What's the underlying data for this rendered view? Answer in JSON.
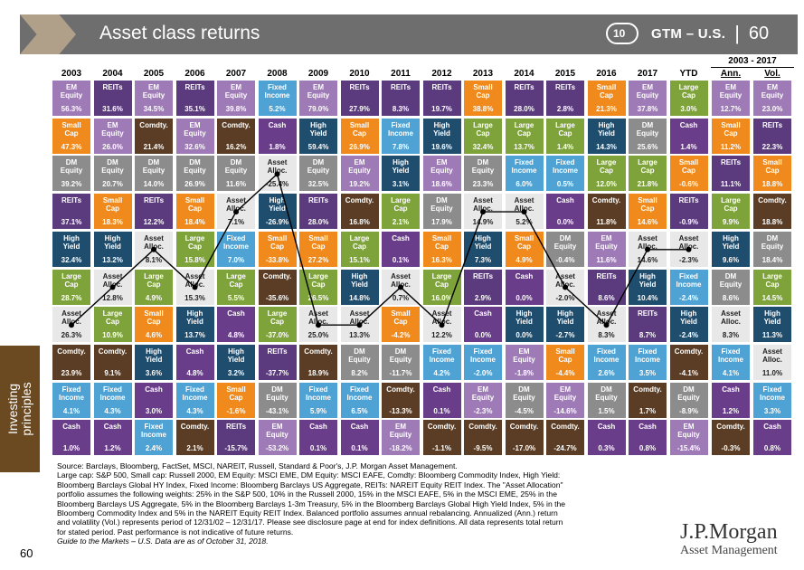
{
  "header": {
    "title": "Asset class returns",
    "audio_label": "10",
    "gtm_label": "GTM – U.S.",
    "separator": "|",
    "page_number": "60"
  },
  "period_label": "2003 - 2017",
  "years": [
    "2003",
    "2004",
    "2005",
    "2006",
    "2007",
    "2008",
    "2009",
    "2010",
    "2011",
    "2012",
    "2013",
    "2014",
    "2015",
    "2016",
    "2017",
    "YTD"
  ],
  "ann_label": "Ann.",
  "vol_label": "Vol.",
  "side_tab": "Investing\nprinciples",
  "colors": {
    "EM Equity": "#9e7ab6",
    "REITs": "#5b3b7e",
    "Small Cap": "#f08a1c",
    "Comdty.": "#5a3d24",
    "DM Equity": "#8c8c8c",
    "Fixed Income": "#4fa3d4",
    "Cash": "#6a3d8a",
    "High Yield": "#1f4d6e",
    "Large Cap": "#7fa33b",
    "Asset Alloc.": "#e8e8e8"
  },
  "grid": [
    [
      [
        "EM\nEquity",
        "56.3%"
      ],
      [
        "REITs",
        "31.6%"
      ],
      [
        "EM\nEquity",
        "34.5%"
      ],
      [
        "REITs",
        "35.1%"
      ],
      [
        "EM\nEquity",
        "39.8%"
      ],
      [
        "Fixed\nIncome",
        "5.2%"
      ],
      [
        "EM\nEquity",
        "79.0%"
      ],
      [
        "REITs",
        "27.9%"
      ],
      [
        "REITs",
        "8.3%"
      ],
      [
        "REITs",
        "19.7%"
      ],
      [
        "Small\nCap",
        "38.8%"
      ],
      [
        "REITs",
        "28.0%"
      ],
      [
        "REITs",
        "2.8%"
      ],
      [
        "Small\nCap",
        "21.3%"
      ],
      [
        "EM\nEquity",
        "37.8%"
      ],
      [
        "Large\nCap",
        "3.0%"
      ],
      [
        "EM\nEquity",
        "12.7%"
      ],
      [
        "EM\nEquity",
        "23.0%"
      ]
    ],
    [
      [
        "Small\nCap",
        "47.3%"
      ],
      [
        "EM\nEquity",
        "26.0%"
      ],
      [
        "Comdty.",
        "21.4%"
      ],
      [
        "EM\nEquity",
        "32.6%"
      ],
      [
        "Comdty.",
        "16.2%"
      ],
      [
        "Cash",
        "1.8%"
      ],
      [
        "High\nYield",
        "59.4%"
      ],
      [
        "Small\nCap",
        "26.9%"
      ],
      [
        "Fixed\nIncome",
        "7.8%"
      ],
      [
        "High\nYield",
        "19.6%"
      ],
      [
        "Large\nCap",
        "32.4%"
      ],
      [
        "Large\nCap",
        "13.7%"
      ],
      [
        "Large\nCap",
        "1.4%"
      ],
      [
        "High\nYield",
        "14.3%"
      ],
      [
        "DM\nEquity",
        "25.6%"
      ],
      [
        "Cash",
        "1.4%"
      ],
      [
        "Small\nCap",
        "11.2%"
      ],
      [
        "REITs",
        "22.3%"
      ]
    ],
    [
      [
        "DM\nEquity",
        "39.2%"
      ],
      [
        "DM\nEquity",
        "20.7%"
      ],
      [
        "DM\nEquity",
        "14.0%"
      ],
      [
        "DM\nEquity",
        "26.9%"
      ],
      [
        "DM\nEquity",
        "11.6%"
      ],
      [
        "Asset\nAlloc.",
        "-25.4%"
      ],
      [
        "DM\nEquity",
        "32.5%"
      ],
      [
        "EM\nEquity",
        "19.2%"
      ],
      [
        "High\nYield",
        "3.1%"
      ],
      [
        "EM\nEquity",
        "18.6%"
      ],
      [
        "DM\nEquity",
        "23.3%"
      ],
      [
        "Fixed\nIncome",
        "6.0%"
      ],
      [
        "Fixed\nIncome",
        "0.5%"
      ],
      [
        "Large\nCap",
        "12.0%"
      ],
      [
        "Large\nCap",
        "21.8%"
      ],
      [
        "Small\nCap",
        "-0.6%"
      ],
      [
        "REITs",
        "11.1%"
      ],
      [
        "Small\nCap",
        "18.8%"
      ]
    ],
    [
      [
        "REITs",
        "37.1%"
      ],
      [
        "Small\nCap",
        "18.3%"
      ],
      [
        "REITs",
        "12.2%"
      ],
      [
        "Small\nCap",
        "18.4%"
      ],
      [
        "Asset\nAlloc.",
        "7.1%"
      ],
      [
        "High\nYield",
        "-26.9%"
      ],
      [
        "REITs",
        "28.0%"
      ],
      [
        "Comdty.",
        "16.8%"
      ],
      [
        "Large\nCap",
        "2.1%"
      ],
      [
        "DM\nEquity",
        "17.9%"
      ],
      [
        "Asset\nAlloc.",
        "14.9%"
      ],
      [
        "Asset\nAlloc.",
        "5.2%"
      ],
      [
        "Cash",
        "0.0%"
      ],
      [
        "Comdty.",
        "11.8%"
      ],
      [
        "Small\nCap",
        "14.6%"
      ],
      [
        "REITs",
        "-0.9%"
      ],
      [
        "Large\nCap",
        "9.9%"
      ],
      [
        "Comdty.",
        "18.8%"
      ]
    ],
    [
      [
        "High\nYield",
        "32.4%"
      ],
      [
        "High\nYield",
        "13.2%"
      ],
      [
        "Asset\nAlloc.",
        "8.1%"
      ],
      [
        "Large\nCap",
        "15.8%"
      ],
      [
        "Fixed\nIncome",
        "7.0%"
      ],
      [
        "Small\nCap",
        "-33.8%"
      ],
      [
        "Small\nCap",
        "27.2%"
      ],
      [
        "Large\nCap",
        "15.1%"
      ],
      [
        "Cash",
        "0.1%"
      ],
      [
        "Small\nCap",
        "16.3%"
      ],
      [
        "High\nYield",
        "7.3%"
      ],
      [
        "Small\nCap",
        "4.9%"
      ],
      [
        "DM\nEquity",
        "-0.4%"
      ],
      [
        "EM\nEquity",
        "11.6%"
      ],
      [
        "Asset\nAlloc.",
        "14.6%"
      ],
      [
        "Asset\nAlloc.",
        "-2.3%"
      ],
      [
        "High\nYield",
        "9.6%"
      ],
      [
        "DM\nEquity",
        "18.4%"
      ]
    ],
    [
      [
        "Large\nCap",
        "28.7%"
      ],
      [
        "Asset\nAlloc.",
        "12.8%"
      ],
      [
        "Large\nCap",
        "4.9%"
      ],
      [
        "Asset\nAlloc.",
        "15.3%"
      ],
      [
        "Large\nCap",
        "5.5%"
      ],
      [
        "Comdty.",
        "-35.6%"
      ],
      [
        "Large\nCap",
        "26.5%"
      ],
      [
        "High\nYield",
        "14.8%"
      ],
      [
        "Asset\nAlloc.",
        "0.7%"
      ],
      [
        "Large\nCap",
        "16.0%"
      ],
      [
        "REITs",
        "2.9%"
      ],
      [
        "Cash",
        "0.0%"
      ],
      [
        "Asset\nAlloc.",
        "-2.0%"
      ],
      [
        "REITs",
        "8.6%"
      ],
      [
        "High\nYield",
        "10.4%"
      ],
      [
        "Fixed\nIncome",
        "-2.4%"
      ],
      [
        "DM\nEquity",
        "8.6%"
      ],
      [
        "Large\nCap",
        "14.5%"
      ]
    ],
    [
      [
        "Asset\nAlloc.",
        "26.3%"
      ],
      [
        "Large\nCap",
        "10.9%"
      ],
      [
        "Small\nCap",
        "4.6%"
      ],
      [
        "High\nYield",
        "13.7%"
      ],
      [
        "Cash",
        "4.8%"
      ],
      [
        "Large\nCap",
        "-37.0%"
      ],
      [
        "Asset\nAlloc.",
        "25.0%"
      ],
      [
        "Asset\nAlloc.",
        "13.3%"
      ],
      [
        "Small\nCap",
        "-4.2%"
      ],
      [
        "Asset\nAlloc.",
        "12.2%"
      ],
      [
        "Cash",
        "0.0%"
      ],
      [
        "High\nYield",
        "0.0%"
      ],
      [
        "High\nYield",
        "-2.7%"
      ],
      [
        "Asset\nAlloc.",
        "8.3%"
      ],
      [
        "REITs",
        "8.7%"
      ],
      [
        "High\nYield",
        "-2.4%"
      ],
      [
        "Asset\nAlloc.",
        "8.3%"
      ],
      [
        "High\nYield",
        "11.3%"
      ]
    ],
    [
      [
        "Comdty.",
        "23.9%"
      ],
      [
        "Comdty.",
        "9.1%"
      ],
      [
        "High\nYield",
        "3.6%"
      ],
      [
        "Cash",
        "4.8%"
      ],
      [
        "High\nYield",
        "3.2%"
      ],
      [
        "REITs",
        "-37.7%"
      ],
      [
        "Comdty.",
        "18.9%"
      ],
      [
        "DM\nEquity",
        "8.2%"
      ],
      [
        "DM\nEquity",
        "-11.7%"
      ],
      [
        "Fixed\nIncome",
        "4.2%"
      ],
      [
        "Fixed\nIncome",
        "-2.0%"
      ],
      [
        "EM\nEquity",
        "-1.8%"
      ],
      [
        "Small\nCap",
        "-4.4%"
      ],
      [
        "Fixed\nIncome",
        "2.6%"
      ],
      [
        "Fixed\nIncome",
        "3.5%"
      ],
      [
        "Comdty.",
        "-4.1%"
      ],
      [
        "Fixed\nIncome",
        "4.1%"
      ],
      [
        "Asset\nAlloc.",
        "11.0%"
      ]
    ],
    [
      [
        "Fixed\nIncome",
        "4.1%"
      ],
      [
        "Fixed\nIncome",
        "4.3%"
      ],
      [
        "Cash",
        "3.0%"
      ],
      [
        "Fixed\nIncome",
        "4.3%"
      ],
      [
        "Small\nCap",
        "-1.6%"
      ],
      [
        "DM\nEquity",
        "-43.1%"
      ],
      [
        "Fixed\nIncome",
        "5.9%"
      ],
      [
        "Fixed\nIncome",
        "6.5%"
      ],
      [
        "Comdty.",
        "-13.3%"
      ],
      [
        "Cash",
        "0.1%"
      ],
      [
        "EM\nEquity",
        "-2.3%"
      ],
      [
        "DM\nEquity",
        "-4.5%"
      ],
      [
        "EM\nEquity",
        "-14.6%"
      ],
      [
        "DM\nEquity",
        "1.5%"
      ],
      [
        "Comdty.",
        "1.7%"
      ],
      [
        "DM\nEquity",
        "-8.9%"
      ],
      [
        "Cash",
        "1.2%"
      ],
      [
        "Fixed\nIncome",
        "3.3%"
      ]
    ],
    [
      [
        "Cash",
        "1.0%"
      ],
      [
        "Cash",
        "1.2%"
      ],
      [
        "Fixed\nIncome",
        "2.4%"
      ],
      [
        "Comdty.",
        "2.1%"
      ],
      [
        "REITs",
        "-15.7%"
      ],
      [
        "EM\nEquity",
        "-53.2%"
      ],
      [
        "Cash",
        "0.1%"
      ],
      [
        "Cash",
        "0.1%"
      ],
      [
        "EM\nEquity",
        "-18.2%"
      ],
      [
        "Comdty.",
        "-1.1%"
      ],
      [
        "Comdty.",
        "-9.5%"
      ],
      [
        "Comdty.",
        "-17.0%"
      ],
      [
        "Comdty.",
        "-24.7%"
      ],
      [
        "Cash",
        "0.3%"
      ],
      [
        "Cash",
        "0.8%"
      ],
      [
        "EM\nEquity",
        "-15.4%"
      ],
      [
        "Comdty.",
        "-0.3%"
      ],
      [
        "Cash",
        "0.8%"
      ]
    ]
  ],
  "source_lines": [
    "Source: Barclays, Bloomberg, FactSet, MSCI, NAREIT, Russell, Standard & Poor's, J.P. Morgan Asset Management.",
    "Large cap: S&P 500, Small cap: Russell 2000, EM Equity: MSCI EME, DM Equity: MSCI EAFE, Comdty: Bloomberg Commodity Index, High Yield:",
    "Bloomberg Barclays Global HY Index, Fixed Income: Bloomberg Barclays US Aggregate, REITs: NAREIT Equity REIT Index. The \"Asset Allocation\"",
    "portfolio assumes the following weights: 25% in the S&P 500, 10% in the Russell 2000, 15% in the MSCI EAFE, 5% in the MSCI EME, 25% in the",
    "Bloomberg Barclays US Aggregate, 5% in the Bloomberg Barclays 1-3m Treasury, 5% in the Bloomberg Barclays Global High Yield Index, 5% in the",
    "Bloomberg Commodity Index and 5% in the NAREIT Equity REIT Index. Balanced portfolio assumes annual rebalancing. Annualized (Ann.) return",
    "and volatility (Vol.) represents period of 12/31/02 – 12/31/17. Please see disclosure page at end for index definitions. All data represents total return",
    "for stated period. Past performance is not indicative of future returns."
  ],
  "guide_line": "Guide to the Markets – U.S. Data are as of October 31, 2018.",
  "page_number": "60",
  "logo": {
    "name": "J.P.Morgan",
    "sub": "Asset Management"
  }
}
